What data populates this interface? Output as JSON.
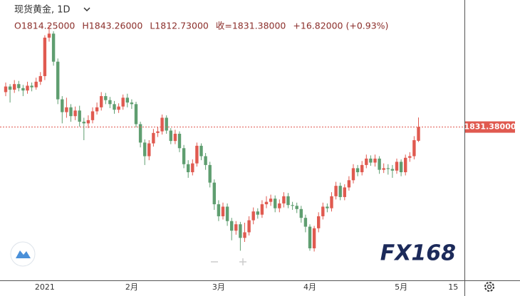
{
  "chart_data": {
    "type": "candlestick",
    "title": "现货黄金, 1D",
    "ohlc_header": [
      "O1814.25000",
      "H1843.26000",
      "L1812.73000",
      "收=1831.38000",
      "+16.82000 (+0.93%)"
    ],
    "last_price_label": "1831.38000",
    "watermark": "FX168",
    "up_color": "#e05a50",
    "down_color": "#5f9e70",
    "ylim": [
      1640,
      1990
    ],
    "categories": [
      null,
      null,
      null,
      null,
      null,
      null,
      null,
      null,
      null,
      "2021",
      null,
      null,
      null,
      null,
      null,
      null,
      null,
      null,
      null,
      null,
      null,
      null,
      null,
      null,
      null,
      null,
      null,
      null,
      null,
      "2月",
      null,
      null,
      null,
      null,
      null,
      null,
      null,
      null,
      null,
      null,
      null,
      null,
      null,
      null,
      null,
      null,
      null,
      null,
      null,
      "3月",
      null,
      null,
      null,
      null,
      null,
      null,
      null,
      null,
      null,
      null,
      null,
      null,
      null,
      null,
      null,
      null,
      null,
      null,
      null,
      null,
      "4月",
      null,
      null,
      null,
      null,
      null,
      null,
      null,
      null,
      null,
      null,
      null,
      null,
      null,
      null,
      null,
      null,
      null,
      null,
      null,
      null,
      "5月",
      null,
      null,
      null,
      null,
      null,
      null,
      null,
      null,
      null,
      null,
      null,
      "15",
      null,
      null
    ],
    "open": [
      1875,
      1882,
      1878,
      1885,
      1880,
      1877,
      1883,
      1881,
      1888,
      1895,
      1943,
      1948,
      1913,
      1866,
      1850,
      1856,
      1845,
      1852,
      1838,
      1836,
      1840,
      1851,
      1856,
      1870,
      1865,
      1860,
      1853,
      1857,
      1868,
      1862,
      1860,
      1835,
      1812,
      1795,
      1811,
      1824,
      1826,
      1843,
      1827,
      1814,
      1823,
      1805,
      1785,
      1775,
      1786,
      1808,
      1795,
      1784,
      1762,
      1735,
      1720,
      1732,
      1714,
      1702,
      1710,
      1693,
      1700,
      1715,
      1726,
      1722,
      1735,
      1738,
      1742,
      1730,
      1736,
      1745,
      1734,
      1733,
      1729,
      1718,
      1707,
      1680,
      1705,
      1720,
      1732,
      1730,
      1745,
      1758,
      1744,
      1756,
      1765,
      1780,
      1775,
      1784,
      1792,
      1787,
      1792,
      1778,
      1780,
      1779,
      1777,
      1788,
      1775,
      1793,
      1795,
      1814.25,
      null,
      null,
      null,
      null,
      null,
      null,
      null,
      null,
      null,
      null
    ],
    "high": [
      1887,
      1885,
      1890,
      1889,
      1884,
      1888,
      1887,
      1893,
      1900,
      1946,
      1959,
      1951,
      1917,
      1870,
      1868,
      1860,
      1857,
      1858,
      1843,
      1846,
      1856,
      1862,
      1875,
      1874,
      1869,
      1864,
      1861,
      1872,
      1873,
      1866,
      1863,
      1838,
      1816,
      1815,
      1829,
      1831,
      1847,
      1846,
      1830,
      1828,
      1826,
      1809,
      1790,
      1791,
      1812,
      1811,
      1799,
      1788,
      1766,
      1740,
      1737,
      1736,
      1718,
      1714,
      1713,
      1712,
      1720,
      1731,
      1730,
      1740,
      1745,
      1747,
      1746,
      1741,
      1750,
      1749,
      1738,
      1737,
      1733,
      1722,
      1710,
      1708,
      1725,
      1737,
      1736,
      1750,
      1763,
      1762,
      1760,
      1770,
      1785,
      1784,
      1789,
      1797,
      1796,
      1797,
      1795,
      1786,
      1785,
      1784,
      1792,
      1791,
      1797,
      1800,
      1820,
      1843.26,
      null,
      null,
      null,
      null,
      null,
      null,
      null,
      null,
      null,
      null
    ],
    "low": [
      1870,
      1862,
      1874,
      1876,
      1870,
      1873,
      1876,
      1878,
      1884,
      1890,
      1938,
      1908,
      1860,
      1836,
      1843,
      1838,
      1840,
      1832,
      1815,
      1830,
      1836,
      1847,
      1852,
      1860,
      1855,
      1848,
      1849,
      1853,
      1856,
      1854,
      1831,
      1806,
      1784,
      1790,
      1807,
      1819,
      1822,
      1823,
      1810,
      1810,
      1800,
      1780,
      1768,
      1771,
      1782,
      1790,
      1778,
      1756,
      1728,
      1714,
      1716,
      1708,
      1690,
      1697,
      1677,
      1688,
      1696,
      1710,
      1717,
      1718,
      1730,
      1733,
      1725,
      1725,
      1731,
      1730,
      1728,
      1724,
      1712,
      1700,
      1677,
      1676,
      1700,
      1716,
      1725,
      1726,
      1741,
      1740,
      1740,
      1752,
      1761,
      1770,
      1771,
      1780,
      1783,
      1782,
      1773,
      1774,
      1772,
      1768,
      1773,
      1770,
      1771,
      1788,
      1791,
      1812.73,
      null,
      null,
      null,
      null,
      null,
      null,
      null,
      null,
      null,
      null
    ],
    "close": [
      1882,
      1878,
      1885,
      1880,
      1877,
      1883,
      1881,
      1888,
      1895,
      1943,
      1948,
      1913,
      1866,
      1850,
      1856,
      1845,
      1852,
      1838,
      1836,
      1840,
      1851,
      1856,
      1870,
      1865,
      1860,
      1853,
      1857,
      1868,
      1862,
      1860,
      1835,
      1812,
      1795,
      1811,
      1824,
      1826,
      1843,
      1827,
      1814,
      1823,
      1805,
      1785,
      1775,
      1786,
      1808,
      1795,
      1784,
      1762,
      1735,
      1720,
      1732,
      1714,
      1702,
      1710,
      1693,
      1700,
      1715,
      1726,
      1722,
      1735,
      1738,
      1742,
      1730,
      1736,
      1745,
      1734,
      1733,
      1729,
      1718,
      1707,
      1680,
      1705,
      1720,
      1732,
      1730,
      1745,
      1758,
      1744,
      1756,
      1765,
      1780,
      1775,
      1784,
      1792,
      1787,
      1792,
      1778,
      1780,
      1779,
      1777,
      1788,
      1775,
      1793,
      1795,
      1815,
      1831.38,
      null,
      null,
      null,
      null,
      null,
      null,
      null,
      null,
      null,
      null
    ]
  }
}
